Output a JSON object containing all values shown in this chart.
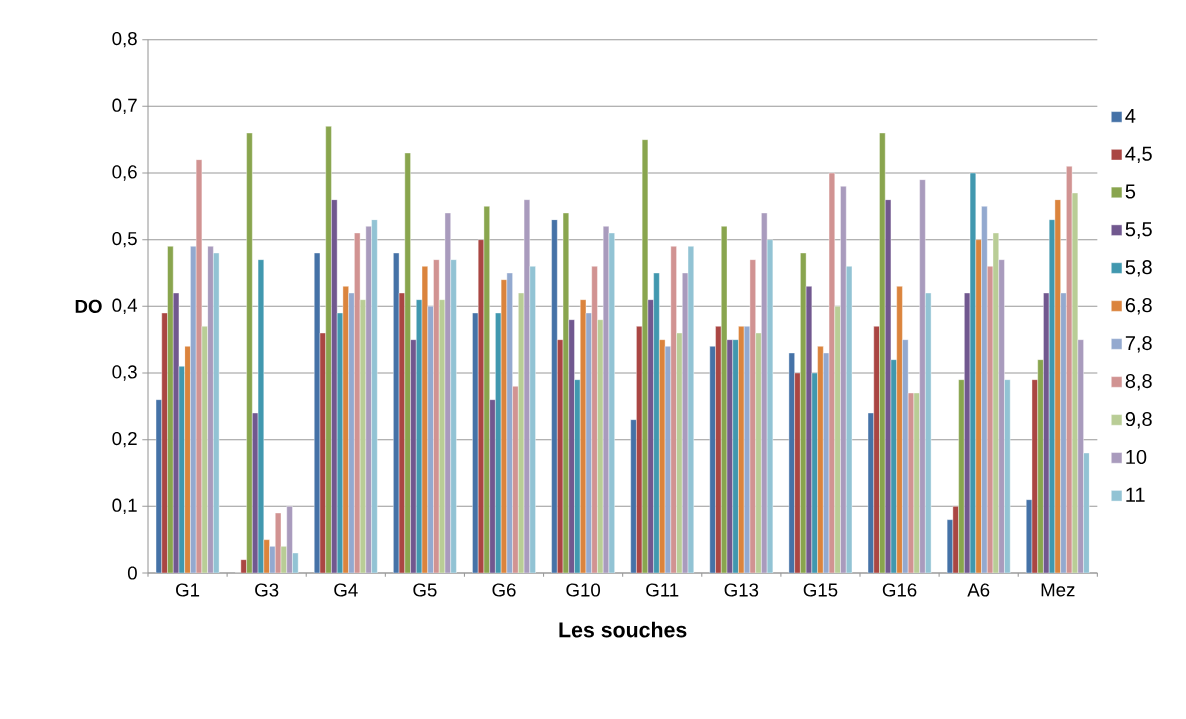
{
  "chart_data": {
    "type": "bar",
    "xlabel": "Les souches",
    "ylabel": "DO",
    "categories": [
      "G1",
      "G3",
      "G4",
      "G5",
      "G6",
      "G10",
      "G11",
      "G13",
      "G15",
      "G16",
      "A6",
      "Mez"
    ],
    "ylim": [
      0,
      0.8
    ],
    "yticks": [
      0,
      {
        "value": 0.1,
        "label": "0,1"
      },
      {
        "value": 0.2,
        "label": "0,2"
      },
      {
        "value": 0.3,
        "label": "0,3"
      },
      {
        "value": 0.4,
        "label": "0,4"
      },
      {
        "value": 0.5,
        "label": "0,5"
      },
      {
        "value": 0.6,
        "label": "0,6"
      },
      {
        "value": 0.7,
        "label": "0,7"
      },
      {
        "value": 0.8,
        "label": "0,8"
      }
    ],
    "grid": "y",
    "legend": "right",
    "series": [
      {
        "name": "4",
        "color": "#4572a7",
        "values": [
          0.26,
          0.0,
          0.48,
          0.48,
          0.39,
          0.53,
          0.23,
          0.34,
          0.33,
          0.24,
          0.08,
          0.11
        ]
      },
      {
        "name": "4,5",
        "color": "#aa4643",
        "values": [
          0.39,
          0.02,
          0.36,
          0.42,
          0.5,
          0.35,
          0.37,
          0.37,
          0.3,
          0.37,
          0.1,
          0.29
        ]
      },
      {
        "name": "5",
        "color": "#89a54e",
        "values": [
          0.49,
          0.66,
          0.67,
          0.63,
          0.55,
          0.54,
          0.65,
          0.52,
          0.48,
          0.66,
          0.29,
          0.32
        ]
      },
      {
        "name": "5,5",
        "color": "#71588f",
        "values": [
          0.42,
          0.24,
          0.56,
          0.35,
          0.26,
          0.38,
          0.41,
          0.35,
          0.43,
          0.56,
          0.42,
          0.42
        ]
      },
      {
        "name": "5,8",
        "color": "#4198af",
        "values": [
          0.31,
          0.47,
          0.39,
          0.41,
          0.39,
          0.29,
          0.45,
          0.35,
          0.3,
          0.32,
          0.6,
          0.53
        ]
      },
      {
        "name": "6,8",
        "color": "#db843d",
        "values": [
          0.34,
          0.05,
          0.43,
          0.46,
          0.44,
          0.41,
          0.35,
          0.37,
          0.34,
          0.43,
          0.5,
          0.56
        ]
      },
      {
        "name": "7,8",
        "color": "#93a9cf",
        "values": [
          0.49,
          0.04,
          0.42,
          0.4,
          0.45,
          0.39,
          0.34,
          0.37,
          0.33,
          0.35,
          0.55,
          0.42
        ]
      },
      {
        "name": "8,8",
        "color": "#d19392",
        "values": [
          0.62,
          0.09,
          0.51,
          0.47,
          0.28,
          0.46,
          0.49,
          0.47,
          0.6,
          0.27,
          0.46,
          0.61
        ]
      },
      {
        "name": "9,8",
        "color": "#b9cd96",
        "values": [
          0.37,
          0.04,
          0.41,
          0.41,
          0.42,
          0.38,
          0.36,
          0.36,
          0.4,
          0.27,
          0.51,
          0.57
        ]
      },
      {
        "name": "10",
        "color": "#a99bbd",
        "values": [
          0.49,
          0.1,
          0.52,
          0.54,
          0.56,
          0.52,
          0.45,
          0.54,
          0.58,
          0.59,
          0.47,
          0.35
        ]
      },
      {
        "name": "11",
        "color": "#92c3d4",
        "values": [
          0.48,
          0.03,
          0.53,
          0.47,
          0.46,
          0.51,
          0.49,
          0.5,
          0.46,
          0.42,
          0.29,
          0.18
        ]
      }
    ]
  }
}
